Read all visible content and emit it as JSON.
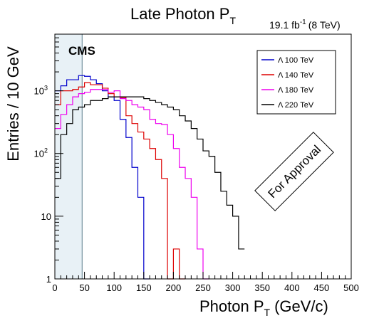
{
  "chart_data": {
    "type": "step-histogram",
    "title_main": "Late Photon P",
    "title_sub": "T",
    "lumi": "19.1 fb",
    "lumi_sup": "-1",
    "lumi_energy": "(8 TeV)",
    "experiment_label": "CMS",
    "stamp": "For Approval",
    "xlabel_main": "Photon P",
    "xlabel_sub": "T",
    "xlabel_unit": "(GeV/c)",
    "ylabel": "Entries / 10 GeV",
    "xlim": [
      0,
      500
    ],
    "ylim": [
      1,
      8000
    ],
    "yscale": "log",
    "bin_width": 10,
    "x_ticks": [
      "0",
      "50",
      "100",
      "150",
      "200",
      "250",
      "300",
      "350",
      "400",
      "450",
      "500"
    ],
    "y_ticks": [
      {
        "value": 1,
        "label": "1"
      },
      {
        "value": 10,
        "label": "10"
      },
      {
        "value": 100,
        "label": "10",
        "exp": "2"
      },
      {
        "value": 1000,
        "label": "10",
        "exp": "3"
      }
    ],
    "shaded_region": {
      "x": [
        0,
        46
      ],
      "color": "#e8f1f6"
    },
    "legend_position": "top-right",
    "series": [
      {
        "name": "Λ 100 TeV",
        "color": "#0000cc",
        "values": [
          1000,
          1200,
          1500,
          1500,
          1750,
          1700,
          1500,
          1300,
          1000,
          800,
          700,
          350,
          180,
          60,
          20,
          0.5
        ]
      },
      {
        "name": "Λ 140 TeV",
        "color": "#dd0000",
        "values": [
          600,
          1000,
          1000,
          1050,
          1150,
          1350,
          1250,
          1250,
          1100,
          900,
          800,
          780,
          400,
          300,
          220,
          170,
          120,
          80,
          40,
          0.5,
          3,
          0.5
        ]
      },
      {
        "name": "Λ 180 TeV",
        "color": "#ee00ee",
        "values": [
          250,
          420,
          600,
          800,
          900,
          950,
          1050,
          1050,
          1050,
          950,
          1000,
          750,
          700,
          600,
          550,
          500,
          350,
          300,
          290,
          200,
          120,
          60,
          40,
          20,
          3,
          0.5
        ]
      },
      {
        "name": "Λ 220 TeV",
        "color": "#000000",
        "values": [
          40,
          200,
          300,
          500,
          550,
          600,
          700,
          700,
          750,
          800,
          800,
          800,
          800,
          800,
          800,
          750,
          700,
          650,
          600,
          550,
          500,
          400,
          330,
          250,
          170,
          110,
          90,
          50,
          25,
          15,
          10,
          3
        ]
      }
    ]
  }
}
